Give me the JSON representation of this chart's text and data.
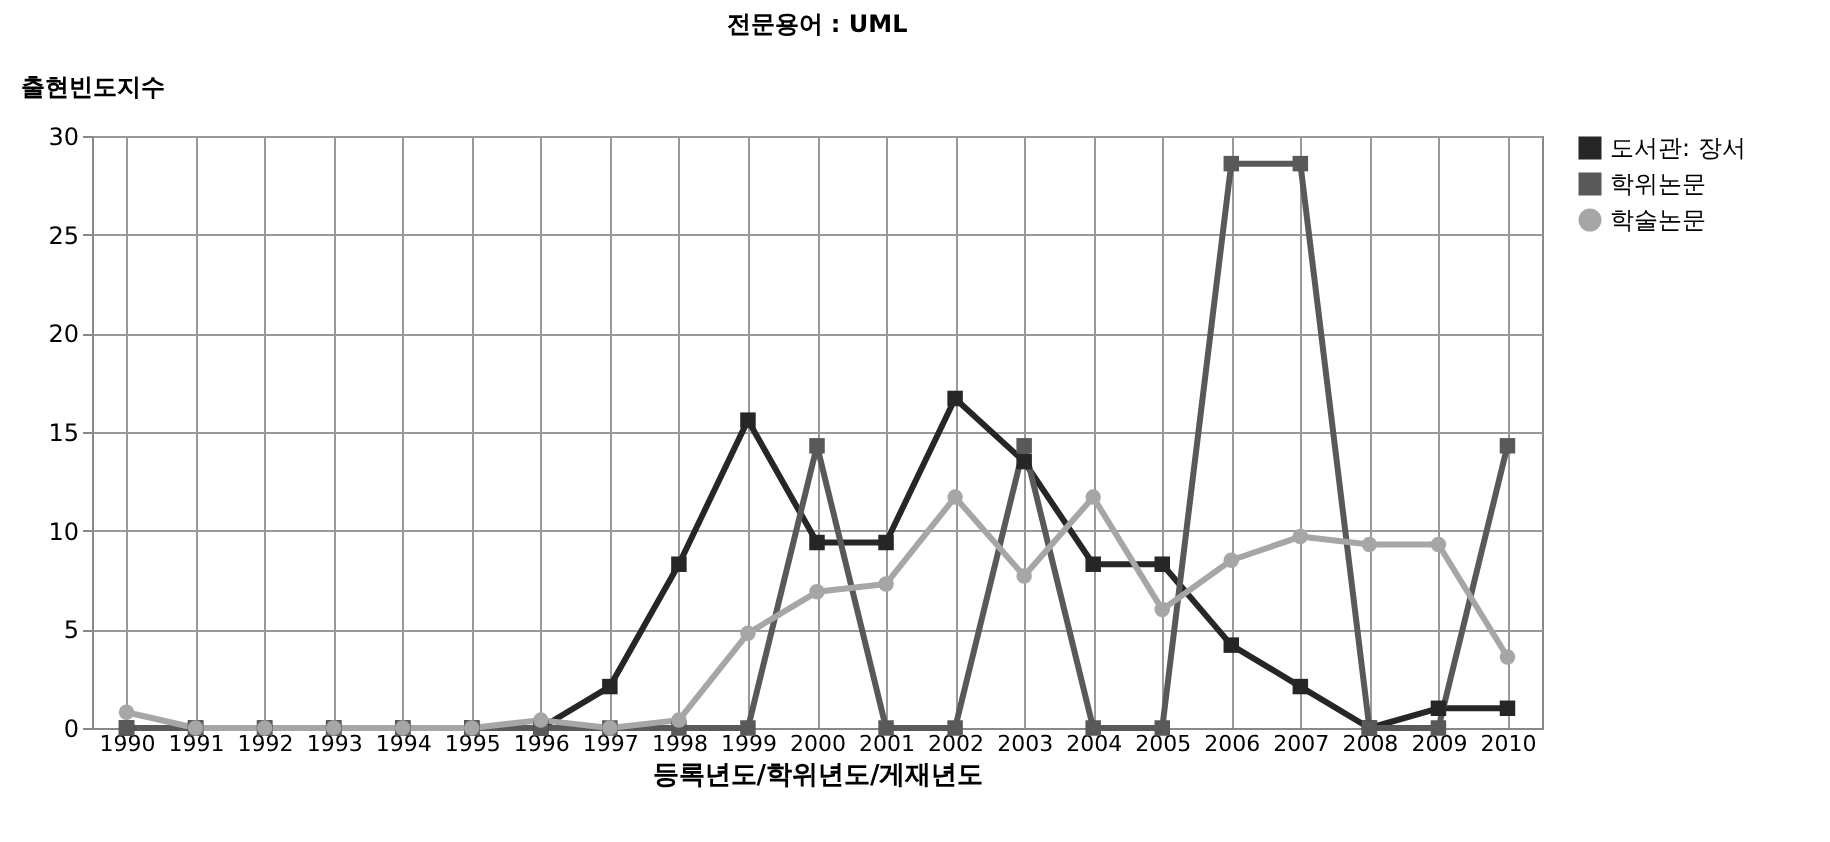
{
  "chart_data": {
    "type": "line",
    "title": "전문용어 : UML",
    "xlabel": "등록년도/학위년도/게재년도",
    "ylabel": "출현빈도지수",
    "categories": [
      "1990",
      "1991",
      "1992",
      "1993",
      "1994",
      "1995",
      "1996",
      "1997",
      "1998",
      "1999",
      "2000",
      "2001",
      "2002",
      "2003",
      "2004",
      "2005",
      "2006",
      "2007",
      "2008",
      "2009",
      "2010"
    ],
    "series": [
      {
        "name": "도서관:  장서",
        "color": "#262626",
        "marker": "square",
        "values": [
          0,
          0,
          0,
          0,
          0,
          0,
          0,
          2.1,
          8.3,
          15.6,
          9.4,
          9.4,
          16.7,
          13.5,
          8.3,
          8.3,
          4.2,
          2.1,
          0,
          1,
          1
        ]
      },
      {
        "name": "학위논문",
        "color": "#595959",
        "marker": "square",
        "values": [
          0,
          0,
          0,
          0,
          0,
          0,
          0,
          0,
          0,
          0,
          14.3,
          0,
          0,
          14.3,
          0,
          0,
          28.6,
          28.6,
          0,
          0,
          14.3
        ]
      },
      {
        "name": "학술논문",
        "color": "#a6a6a6",
        "marker": "circle",
        "values": [
          0.8,
          0,
          0,
          0,
          0,
          0,
          0.4,
          0,
          0.4,
          4.8,
          6.9,
          7.3,
          11.7,
          7.7,
          11.7,
          6.0,
          8.5,
          9.7,
          9.3,
          9.3,
          3.6
        ]
      }
    ],
    "ylim": [
      0,
      30
    ],
    "yticks": [
      0,
      5,
      10,
      15,
      20,
      25,
      30
    ],
    "grid": true,
    "legend": "right",
    "line_style": "solid"
  }
}
